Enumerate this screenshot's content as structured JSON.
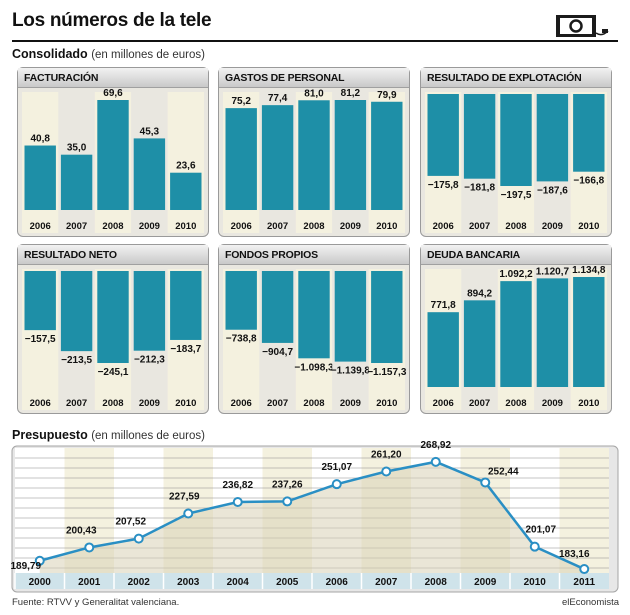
{
  "header": {
    "title": "Los números de la tele"
  },
  "consolidado": {
    "heading": "Consolidado",
    "unit": "(en millones de euros)"
  },
  "presupuesto": {
    "heading": "Presupuesto",
    "unit": "(en millones de euros)"
  },
  "footer": {
    "source": "Fuente: RTVV y Generalitat valenciana.",
    "brand": "elEconomista"
  },
  "colors": {
    "bar": "#1e8fa7",
    "panel_bg": "#e9e7e0",
    "stripe": "#f4f1df",
    "line": "#2a8fc4"
  },
  "chart_data": [
    {
      "type": "bar",
      "title": "FACTURACIÓN",
      "categories": [
        "2006",
        "2007",
        "2008",
        "2009",
        "2010"
      ],
      "values": [
        40.8,
        35.0,
        69.6,
        45.3,
        23.6
      ],
      "labels": [
        "40,8",
        "35,0",
        "69,6",
        "45,3",
        "23,6"
      ]
    },
    {
      "type": "bar",
      "title": "GASTOS DE PERSONAL",
      "categories": [
        "2006",
        "2007",
        "2008",
        "2009",
        "2010"
      ],
      "values": [
        75.2,
        77.4,
        81.0,
        81.2,
        79.9
      ],
      "labels": [
        "75,2",
        "77,4",
        "81,0",
        "81,2",
        "79,9"
      ]
    },
    {
      "type": "bar",
      "title": "RESULTADO DE EXPLOTACIÓN",
      "categories": [
        "2006",
        "2007",
        "2008",
        "2009",
        "2010"
      ],
      "values": [
        -175.8,
        -181.8,
        -197.5,
        -187.6,
        -166.8
      ],
      "labels": [
        "−175,8",
        "−181,8",
        "−197,5",
        "−187,6",
        "−166,8"
      ]
    },
    {
      "type": "bar",
      "title": "RESULTADO NETO",
      "categories": [
        "2006",
        "2007",
        "2008",
        "2009",
        "2010"
      ],
      "values": [
        -157.5,
        -213.5,
        -245.1,
        -212.3,
        -183.7
      ],
      "labels": [
        "−157,5",
        "−213,5",
        "−245,1",
        "−212,3",
        "−183,7"
      ]
    },
    {
      "type": "bar",
      "title": "FONDOS PROPIOS",
      "categories": [
        "2006",
        "2007",
        "2008",
        "2009",
        "2010"
      ],
      "values": [
        -738.8,
        -904.7,
        -1098.3,
        -1139.8,
        -1157.3
      ],
      "labels": [
        "−738,8",
        "−904,7",
        "−1.098,3",
        "−1.139,8",
        "−1.157,3"
      ]
    },
    {
      "type": "bar",
      "title": "DEUDA BANCARIA",
      "categories": [
        "2006",
        "2007",
        "2008",
        "2009",
        "2010"
      ],
      "values": [
        771.8,
        894.2,
        1092.2,
        1120.7,
        1134.8
      ],
      "labels": [
        "771,8",
        "894,2",
        "1.092,2",
        "1.120,7",
        "1.134,8"
      ]
    },
    {
      "type": "line",
      "title": "Presupuesto",
      "x": [
        "2000",
        "2001",
        "2002",
        "2003",
        "2004",
        "2005",
        "2006",
        "2007",
        "2008",
        "2009",
        "2010",
        "2011"
      ],
      "values": [
        189.79,
        200.43,
        207.52,
        227.59,
        236.82,
        237.26,
        251.07,
        261.2,
        268.92,
        252.44,
        201.07,
        183.16
      ],
      "labels": [
        "189,79",
        "200,43",
        "207,52",
        "227,59",
        "236,82",
        "237,26",
        "251,07",
        "261,20",
        "268,92",
        "252,44",
        "201,07",
        "183,16"
      ]
    }
  ]
}
